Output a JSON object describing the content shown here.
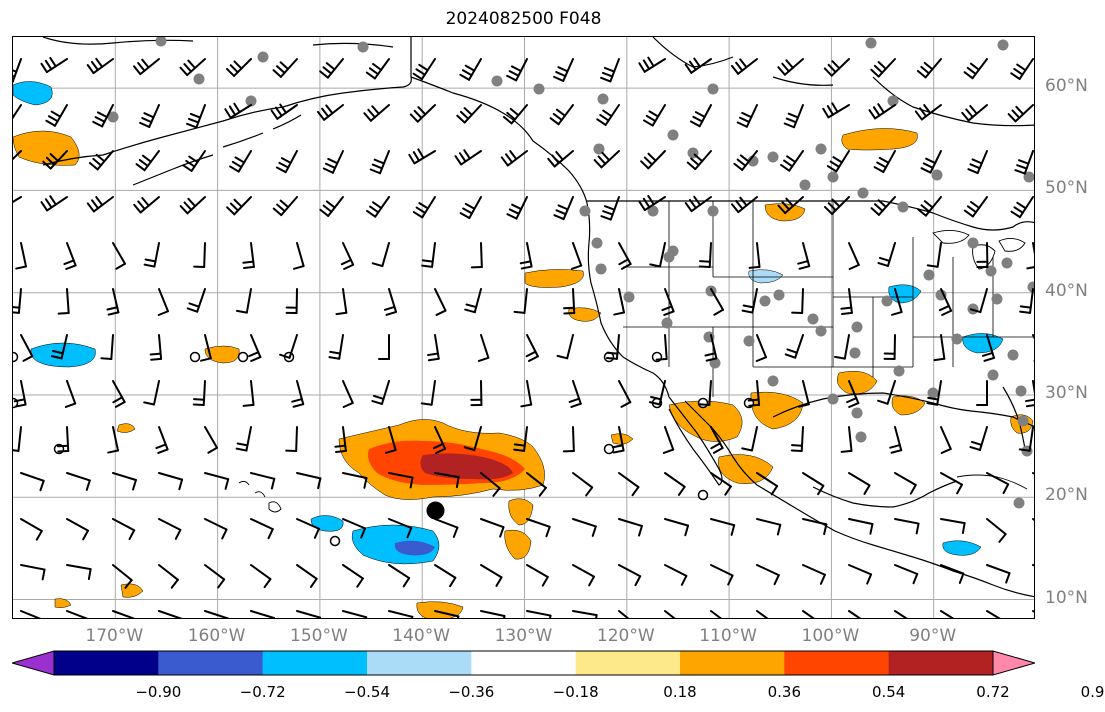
{
  "title": "2024082500 F048",
  "map": {
    "lon_range": [
      -180,
      -80
    ],
    "lat_range": [
      8,
      65
    ],
    "lat_labels": [
      {
        "lat": 60,
        "text": "60°N"
      },
      {
        "lat": 50,
        "text": "50°N"
      },
      {
        "lat": 40,
        "text": "40°N"
      },
      {
        "lat": 30,
        "text": "30°N"
      },
      {
        "lat": 20,
        "text": "20°N"
      },
      {
        "lat": 10,
        "text": "10°N"
      }
    ],
    "lon_labels": [
      {
        "lon": -170,
        "text": "170°W"
      },
      {
        "lon": -160,
        "text": "160°W"
      },
      {
        "lon": -150,
        "text": "150°W"
      },
      {
        "lon": -140,
        "text": "140°W"
      },
      {
        "lon": -130,
        "text": "130°W"
      },
      {
        "lon": -120,
        "text": "120°W"
      },
      {
        "lon": -110,
        "text": "110°W"
      },
      {
        "lon": -100,
        "text": "100°W"
      },
      {
        "lon": -90,
        "text": "90°W"
      }
    ],
    "storm_center": {
      "lon": -138.7,
      "lat": 18.7
    },
    "colors": {
      "land_line": "#000000",
      "grid": "#aaaaaa",
      "station_dot": "#808080"
    }
  },
  "colorbar": {
    "bins": [
      "#9b30d0",
      "#00008b",
      "#3a5bd0",
      "#00bfff",
      "#aadcf8",
      "#ffffff",
      "#fde98a",
      "#ffa500",
      "#ff4500",
      "#b22222",
      "#ff88aa"
    ],
    "ticks": [
      "−0.90",
      "−0.72",
      "−0.54",
      "−0.36",
      "−0.18",
      "0.18",
      "0.36",
      "0.54",
      "0.72",
      "0.90"
    ]
  }
}
